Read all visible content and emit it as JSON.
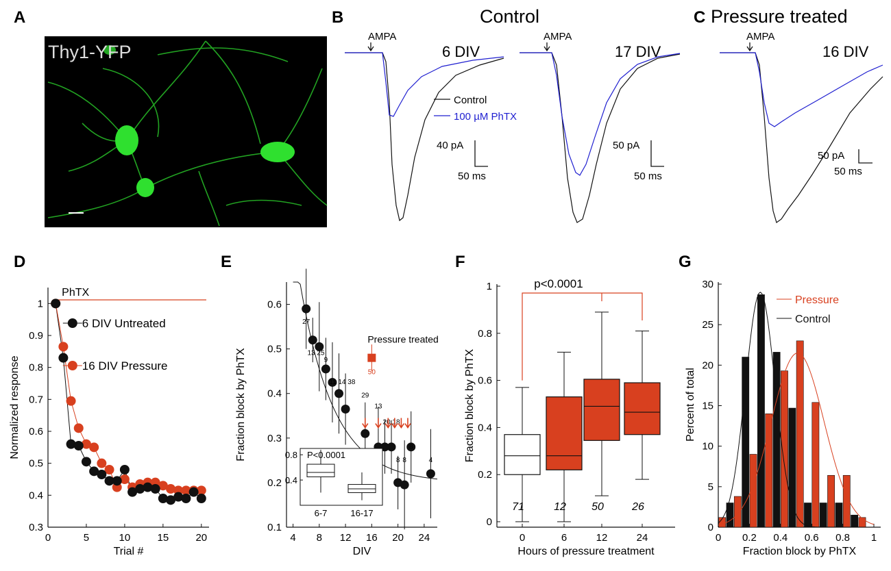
{
  "panels": {
    "A": "A",
    "B": "B",
    "C": "C",
    "D": "D",
    "E": "E",
    "F": "F",
    "G": "G"
  },
  "colors": {
    "orange": "#d8401f",
    "blue": "#1f1fd0",
    "black": "#111111",
    "green": "#2fd82f"
  },
  "panel_a": {
    "label": "Thy1-YFP"
  },
  "panel_b": {
    "title": "Control",
    "trace1": {
      "label": "6 DIV",
      "ampa": "AMPA",
      "legend_control": "Control",
      "legend_phtx": "100 µM PhTX",
      "scale_y": "40 pA",
      "scale_x": "50 ms"
    },
    "trace2": {
      "label": "17 DIV",
      "ampa": "AMPA",
      "scale_y": "50 pA",
      "scale_x": "50 ms"
    }
  },
  "panel_c": {
    "title": "Pressure treated",
    "label": "16 DIV",
    "ampa": "AMPA",
    "scale_y": "50 pA",
    "scale_x": "50 ms"
  },
  "chart_data": [
    {
      "type": "scatter",
      "id": "D",
      "xlabel": "Trial #",
      "ylabel": "Normalized response",
      "xlim": [
        0,
        21
      ],
      "ylim": [
        0.3,
        1.05
      ],
      "xticks": [
        "0",
        "5",
        "10",
        "15",
        "20"
      ],
      "yticks": [
        "0.3",
        "0.4",
        "0.5",
        "0.6",
        "0.7",
        "0.8",
        "0.9",
        "1"
      ],
      "bar_label": "PhTX",
      "series": [
        {
          "name": "6 DIV Untreated",
          "x": [
            1,
            2,
            3,
            4,
            5,
            6,
            7,
            8,
            9,
            10,
            11,
            12,
            13,
            14,
            15,
            16,
            17,
            18,
            19,
            20
          ],
          "y": [
            1.0,
            0.83,
            0.56,
            0.555,
            0.505,
            0.475,
            0.465,
            0.445,
            0.445,
            0.48,
            0.41,
            0.42,
            0.425,
            0.42,
            0.39,
            0.385,
            0.395,
            0.39,
            0.41,
            0.39
          ]
        },
        {
          "name": "16 DIV Pressure",
          "x": [
            1,
            2,
            3,
            4,
            5,
            6,
            7,
            8,
            9,
            10,
            11,
            12,
            13,
            14,
            15,
            16,
            17,
            18,
            19,
            20
          ],
          "y": [
            1.0,
            0.865,
            0.695,
            0.61,
            0.56,
            0.55,
            0.5,
            0.48,
            0.425,
            0.45,
            0.425,
            0.435,
            0.44,
            0.44,
            0.43,
            0.42,
            0.415,
            0.415,
            0.415,
            0.415
          ]
        }
      ]
    },
    {
      "type": "scatter",
      "id": "E",
      "xlabel": "DIV",
      "ylabel": "Fraction block by PhTX",
      "xlim": [
        3,
        26
      ],
      "ylim": [
        0.1,
        0.65
      ],
      "xticks": [
        "4",
        "8",
        "12",
        "16",
        "20",
        "24"
      ],
      "yticks": [
        "0.1",
        "0.2",
        "0.3",
        "0.4",
        "0.5",
        "0.6"
      ],
      "points": {
        "x": [
          6,
          7,
          8,
          9,
          10,
          11,
          12,
          15,
          17,
          18,
          19,
          20,
          21,
          22,
          25
        ],
        "y": [
          0.59,
          0.52,
          0.505,
          0.455,
          0.425,
          0.4,
          0.365,
          0.31,
          0.28,
          0.28,
          0.28,
          0.2,
          0.195,
          0.28,
          0.22
        ],
        "err": [
          0.09,
          0.05,
          0.1,
          0.07,
          0.09,
          0.09,
          0.08,
          0.07,
          0.09,
          0.06,
          0.06,
          0.06,
          0.1,
          0.08,
          0.1
        ]
      },
      "n_labels": [
        {
          "x": 6,
          "t": "27"
        },
        {
          "x": 7.5,
          "t": "13 25"
        },
        {
          "x": 9,
          "t": "9"
        },
        {
          "x": 11.5,
          "t": "11 14 38"
        },
        {
          "x": 15,
          "t": "29"
        },
        {
          "x": 17,
          "t": "13"
        },
        {
          "x": 19,
          "t": "20 18"
        },
        {
          "x": 22,
          "t": "8"
        },
        {
          "x": 20,
          "t": "8"
        },
        {
          "x": 21,
          "t": "8"
        },
        {
          "x": 25,
          "t": "4"
        }
      ],
      "pressure": {
        "label": "Pressure treated",
        "x": 16,
        "y": 0.48,
        "n": "50"
      },
      "arrows_x": [
        15,
        17,
        18.5,
        19.5,
        20.5,
        21.5
      ],
      "inset": {
        "pval": "P<0.0001",
        "categories": [
          "6-7",
          "16-17"
        ],
        "yticks": [
          "0.4",
          "0.8"
        ],
        "ylim": [
          0,
          0.9
        ],
        "boxes": [
          {
            "min": 0.2,
            "q1": 0.45,
            "med": 0.52,
            "q3": 0.65,
            "max": 0.88
          },
          {
            "min": 0.08,
            "q1": 0.2,
            "med": 0.26,
            "q3": 0.33,
            "max": 0.52
          }
        ]
      }
    },
    {
      "type": "box",
      "id": "F",
      "xlabel": "Hours of pressure treatment",
      "ylabel": "Fraction block by PhTX",
      "ylim": [
        0,
        1
      ],
      "yticks": [
        "0",
        "0.2",
        "0.4",
        "0.6",
        "0.8",
        "1"
      ],
      "categories": [
        "0",
        "6",
        "12",
        "24"
      ],
      "n": [
        "71",
        "12",
        "50",
        "26"
      ],
      "pval": "p<0.0001",
      "boxes": [
        {
          "min": 0.0,
          "q1": 0.2,
          "med": 0.28,
          "q3": 0.37,
          "max": 0.57
        },
        {
          "min": 0.0,
          "q1": 0.22,
          "med": 0.28,
          "q3": 0.53,
          "max": 0.72
        },
        {
          "min": 0.11,
          "q1": 0.345,
          "med": 0.49,
          "q3": 0.605,
          "max": 0.89
        },
        {
          "min": 0.18,
          "q1": 0.37,
          "med": 0.465,
          "q3": 0.59,
          "max": 0.81
        }
      ]
    },
    {
      "type": "bar",
      "id": "G",
      "xlabel": "Fraction block by PhTX",
      "ylabel": "Percent of total",
      "xlim": [
        0,
        1
      ],
      "ylim": [
        0,
        30
      ],
      "xticks": [
        "0",
        "0.2",
        "0.4",
        "0.6",
        "0.8",
        "1"
      ],
      "yticks": [
        "0",
        "5",
        "10",
        "15",
        "20",
        "25",
        "30"
      ],
      "series": [
        {
          "name": "Control",
          "x": [
            0.075,
            0.175,
            0.275,
            0.375,
            0.475,
            0.575,
            0.675,
            0.775,
            0.875
          ],
          "values": [
            3,
            21,
            28.7,
            21.6,
            14.7,
            3,
            3,
            3,
            1.5
          ]
        },
        {
          "name": "Pressure",
          "x": [
            0.025,
            0.125,
            0.225,
            0.325,
            0.425,
            0.525,
            0.625,
            0.725,
            0.825,
            0.925
          ],
          "values": [
            1.2,
            3.8,
            9,
            14,
            19.3,
            23,
            15.4,
            6.4,
            6.4,
            1.2
          ]
        }
      ]
    }
  ]
}
